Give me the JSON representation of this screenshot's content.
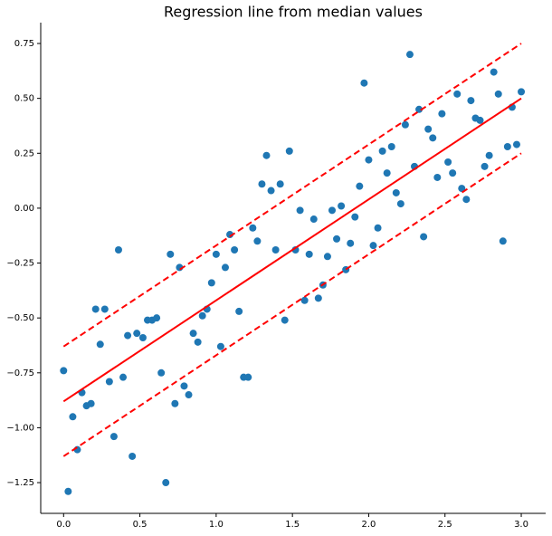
{
  "chart_data": {
    "type": "scatter",
    "title": "Regression line from median values",
    "x": [
      0.0,
      0.03,
      0.06,
      0.09,
      0.12,
      0.15,
      0.18,
      0.21,
      0.24,
      0.27,
      0.3,
      0.33,
      0.36,
      0.39,
      0.42,
      0.45,
      0.48,
      0.52,
      0.55,
      0.58,
      0.61,
      0.64,
      0.67,
      0.7,
      0.73,
      0.76,
      0.79,
      0.82,
      0.85,
      0.88,
      0.91,
      0.94,
      0.97,
      1.0,
      1.03,
      1.06,
      1.09,
      1.12,
      1.15,
      1.18,
      1.21,
      1.24,
      1.27,
      1.3,
      1.33,
      1.36,
      1.39,
      1.42,
      1.45,
      1.48,
      1.52,
      1.55,
      1.58,
      1.61,
      1.64,
      1.67,
      1.7,
      1.73,
      1.76,
      1.79,
      1.82,
      1.85,
      1.88,
      1.91,
      1.94,
      1.97,
      2.0,
      2.03,
      2.06,
      2.09,
      2.12,
      2.15,
      2.18,
      2.21,
      2.24,
      2.27,
      2.3,
      2.33,
      2.36,
      2.39,
      2.42,
      2.45,
      2.48,
      2.52,
      2.55,
      2.58,
      2.61,
      2.64,
      2.67,
      2.7,
      2.73,
      2.76,
      2.79,
      2.82,
      2.85,
      2.88,
      2.91,
      2.94,
      2.97,
      3.0
    ],
    "values": [
      -0.74,
      -1.29,
      -0.95,
      -1.1,
      -0.84,
      -0.9,
      -0.89,
      -0.46,
      -0.62,
      -0.46,
      -0.79,
      -1.04,
      -0.19,
      -0.77,
      -0.58,
      -1.13,
      -0.57,
      -0.59,
      -0.51,
      -0.51,
      -0.5,
      -0.75,
      -1.25,
      -0.21,
      -0.89,
      -0.27,
      -0.81,
      -0.85,
      -0.57,
      -0.61,
      -0.49,
      -0.46,
      -0.34,
      -0.21,
      -0.63,
      -0.27,
      -0.12,
      -0.19,
      -0.47,
      -0.77,
      -0.77,
      -0.09,
      -0.15,
      0.11,
      0.24,
      0.08,
      -0.19,
      0.11,
      -0.51,
      0.26,
      -0.19,
      -0.01,
      -0.42,
      -0.21,
      -0.05,
      -0.41,
      -0.35,
      -0.22,
      -0.01,
      -0.14,
      0.01,
      -0.28,
      -0.16,
      -0.04,
      0.1,
      0.57,
      0.22,
      -0.17,
      -0.09,
      0.26,
      0.16,
      0.28,
      0.07,
      0.02,
      0.38,
      0.7,
      0.19,
      0.45,
      -0.13,
      0.36,
      0.32,
      0.14,
      0.43,
      0.21,
      0.16,
      0.52,
      0.09,
      0.04,
      0.49,
      0.41,
      0.4,
      0.19,
      0.24,
      0.62,
      0.52,
      -0.15,
      0.28,
      0.46,
      0.29,
      0.53
    ],
    "color": "#1f77b4",
    "lines": [
      {
        "x": [
          0,
          3
        ],
        "values": [
          -0.88,
          0.5
        ],
        "color": "#ff0000",
        "dashed": false
      },
      {
        "x": [
          0,
          3
        ],
        "values": [
          -0.63,
          0.75
        ],
        "color": "#ff0000",
        "dashed": true
      },
      {
        "x": [
          0,
          3
        ],
        "values": [
          -1.13,
          0.25
        ],
        "color": "#ff0000",
        "dashed": true
      }
    ],
    "xlim": [
      -0.15,
      3.16
    ],
    "xticks": [
      {
        "value": 0,
        "label": "0.0"
      },
      0.5,
      {
        "value": 1,
        "label": "1.0"
      },
      1.5,
      {
        "value": 2,
        "label": "2.0"
      },
      2.5,
      {
        "value": 3,
        "label": "3.0"
      }
    ],
    "ylim": [
      -1.39,
      0.845
    ],
    "yticks": [
      {
        "value": -1.25,
        "label": "−1.25"
      },
      {
        "value": -1,
        "label": "−1.00"
      },
      {
        "value": -0.75,
        "label": "−0.75"
      },
      {
        "value": -0.5,
        "label": "−0.50"
      },
      {
        "value": -0.25,
        "label": "−0.25"
      },
      {
        "value": 0,
        "label": "0.00"
      },
      0.25,
      {
        "value": 0.5,
        "label": "0.50"
      },
      0.75
    ],
    "grid": false
  }
}
